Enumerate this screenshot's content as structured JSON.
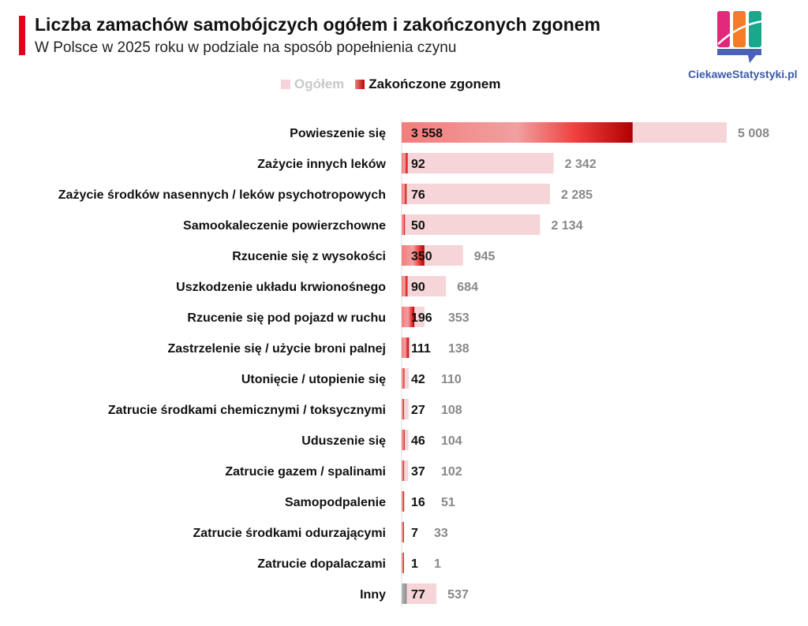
{
  "header": {
    "title": "Liczba zamachów samobójczych ogółem i zakończonych zgonem",
    "subtitle": "W Polsce w 2025 roku w podziale na sposób popełnienia czynu",
    "accent_color": "#e3001b"
  },
  "logo": {
    "text": "CiekaweStatystyki.pl"
  },
  "chart_data": {
    "type": "bar",
    "orientation": "horizontal",
    "categories": [
      "Powieszenie się",
      "Zażycie innych leków",
      "Zażycie środków nasennych / leków psychotropowych",
      "Samookaleczenie powierzchowne",
      "Rzucenie się z wysokości",
      "Uszkodzenie układu krwionośnego",
      "Rzucenie się pod pojazd w ruchu",
      "Zastrzelenie się / użycie broni palnej",
      "Utonięcie / utopienie się",
      "Zatrucie środkami chemicznymi / toksycznymi",
      "Uduszenie się",
      "Zatrucie gazem / spalinami",
      "Samopodpalenie",
      "Zatrucie środkami odurzającymi",
      "Zatrucie dopalaczami",
      "Inny"
    ],
    "series": [
      {
        "name": "Ogółem",
        "color": "#f5d5d7",
        "values": [
          5008,
          2342,
          2285,
          2134,
          945,
          684,
          353,
          138,
          110,
          108,
          104,
          102,
          51,
          33,
          1,
          537
        ],
        "labels": [
          "5 008",
          "2 342",
          "2 285",
          "2 134",
          "945",
          "684",
          "353",
          "138",
          "110",
          "108",
          "104",
          "102",
          "51",
          "33",
          "1",
          "537"
        ]
      },
      {
        "name": "Zakończone zgonem",
        "color": "#c00000",
        "values": [
          3558,
          92,
          76,
          50,
          350,
          90,
          196,
          111,
          42,
          27,
          46,
          37,
          16,
          7,
          1,
          77
        ],
        "labels": [
          "3 558",
          "92",
          "76",
          "50",
          "350",
          "90",
          "196",
          "111",
          "42",
          "27",
          "46",
          "37",
          "16",
          "7",
          "1",
          "77"
        ]
      }
    ],
    "legend_position": "top",
    "grid": false
  }
}
